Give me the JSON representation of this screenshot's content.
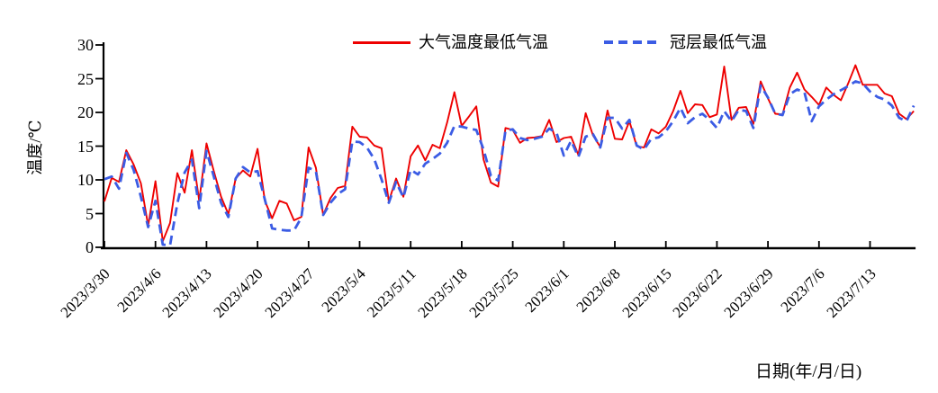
{
  "chart_data": {
    "type": "line",
    "title": "",
    "grid": false,
    "legend_position": "top",
    "x_axis": {
      "label": "日期(年/月/日)",
      "start_date": "2023/3/30",
      "point_interval": "1 day",
      "tick_interval_days": 7,
      "tick_labels": [
        "2023/3/30",
        "2023/4/6",
        "2023/4/13",
        "2023/4/20",
        "2023/4/27",
        "2023/5/4",
        "2023/5/11",
        "2023/5/18",
        "2023/5/25",
        "2023/6/1",
        "2023/6/8",
        "2023/6/15",
        "2023/6/22",
        "2023/6/29",
        "2023/7/6",
        "2023/7/13"
      ]
    },
    "y_axis": {
      "label": "温度/℃",
      "min": 0,
      "max": 30,
      "tick_step": 5,
      "tick_labels": [
        "0",
        "5",
        "10",
        "15",
        "20",
        "25",
        "30"
      ]
    },
    "series": [
      {
        "name": "大气温度最低气温",
        "color": "#ee0000",
        "style": "solid",
        "values": [
          6.8,
          10.3,
          9.7,
          14.4,
          12.3,
          9.5,
          3.2,
          9.8,
          0.9,
          3.6,
          11.0,
          8.1,
          14.4,
          6.9,
          15.4,
          11.3,
          7.5,
          4.9,
          10.2,
          11.4,
          10.5,
          14.6,
          6.9,
          4.3,
          6.9,
          6.5,
          4.0,
          4.5,
          14.8,
          11.8,
          4.8,
          7.3,
          8.8,
          9.1,
          17.9,
          16.4,
          16.3,
          15.1,
          14.7,
          6.8,
          10.2,
          7.5,
          13.5,
          15.1,
          12.9,
          15.2,
          14.7,
          18.5,
          23.0,
          18.0,
          19.4,
          20.9,
          13.0,
          9.6,
          9.0,
          17.7,
          17.4,
          15.5,
          16.2,
          16.3,
          16.5,
          18.9,
          15.6,
          16.2,
          16.4,
          13.7,
          19.9,
          16.6,
          14.9,
          20.3,
          16.1,
          16.0,
          18.7,
          15.0,
          14.8,
          17.5,
          16.9,
          17.9,
          20.2,
          23.2,
          19.9,
          21.2,
          21.1,
          19.3,
          19.7,
          26.8,
          18.9,
          20.7,
          20.8,
          18.3,
          24.6,
          22.1,
          19.8,
          19.7,
          23.7,
          25.9,
          23.4,
          22.3,
          21.1,
          23.7,
          22.6,
          21.8,
          24.3,
          27.0,
          24.1,
          24.1,
          24.1,
          22.8,
          22.4,
          19.8,
          19.0,
          20.2
        ]
      },
      {
        "name": "冠层最低气温",
        "color": "#3b5ce4",
        "style": "dashed",
        "values": [
          10.1,
          10.5,
          8.7,
          14.0,
          11.5,
          7.5,
          3.0,
          6.9,
          0.4,
          0.3,
          6.5,
          11.1,
          13.0,
          5.8,
          14.3,
          10.5,
          6.6,
          4.5,
          10.2,
          11.9,
          11.1,
          11.3,
          7.1,
          2.8,
          2.6,
          2.5,
          2.5,
          4.4,
          11.8,
          11.3,
          4.8,
          6.6,
          7.9,
          8.6,
          15.7,
          15.6,
          14.8,
          13.1,
          10.1,
          6.6,
          9.7,
          7.4,
          11.5,
          10.8,
          12.4,
          13.1,
          13.9,
          15.5,
          18.0,
          17.9,
          17.6,
          17.4,
          14.5,
          10.6,
          9.9,
          17.3,
          17.5,
          16.2,
          15.9,
          16.1,
          16.4,
          17.6,
          17.0,
          13.6,
          15.8,
          13.4,
          16.4,
          16.8,
          14.8,
          19.2,
          19.2,
          17.6,
          18.9,
          15.1,
          14.5,
          16.1,
          16.3,
          17.2,
          18.7,
          20.7,
          18.4,
          19.3,
          19.8,
          18.9,
          17.7,
          20.2,
          18.7,
          20.4,
          20.2,
          17.7,
          24.0,
          22.2,
          19.8,
          19.6,
          22.7,
          23.4,
          23.0,
          18.7,
          20.9,
          21.9,
          22.7,
          23.3,
          23.9,
          24.6,
          24.3,
          23.1,
          22.3,
          21.9,
          21.0,
          19.2,
          18.7,
          21.0
        ]
      }
    ]
  }
}
